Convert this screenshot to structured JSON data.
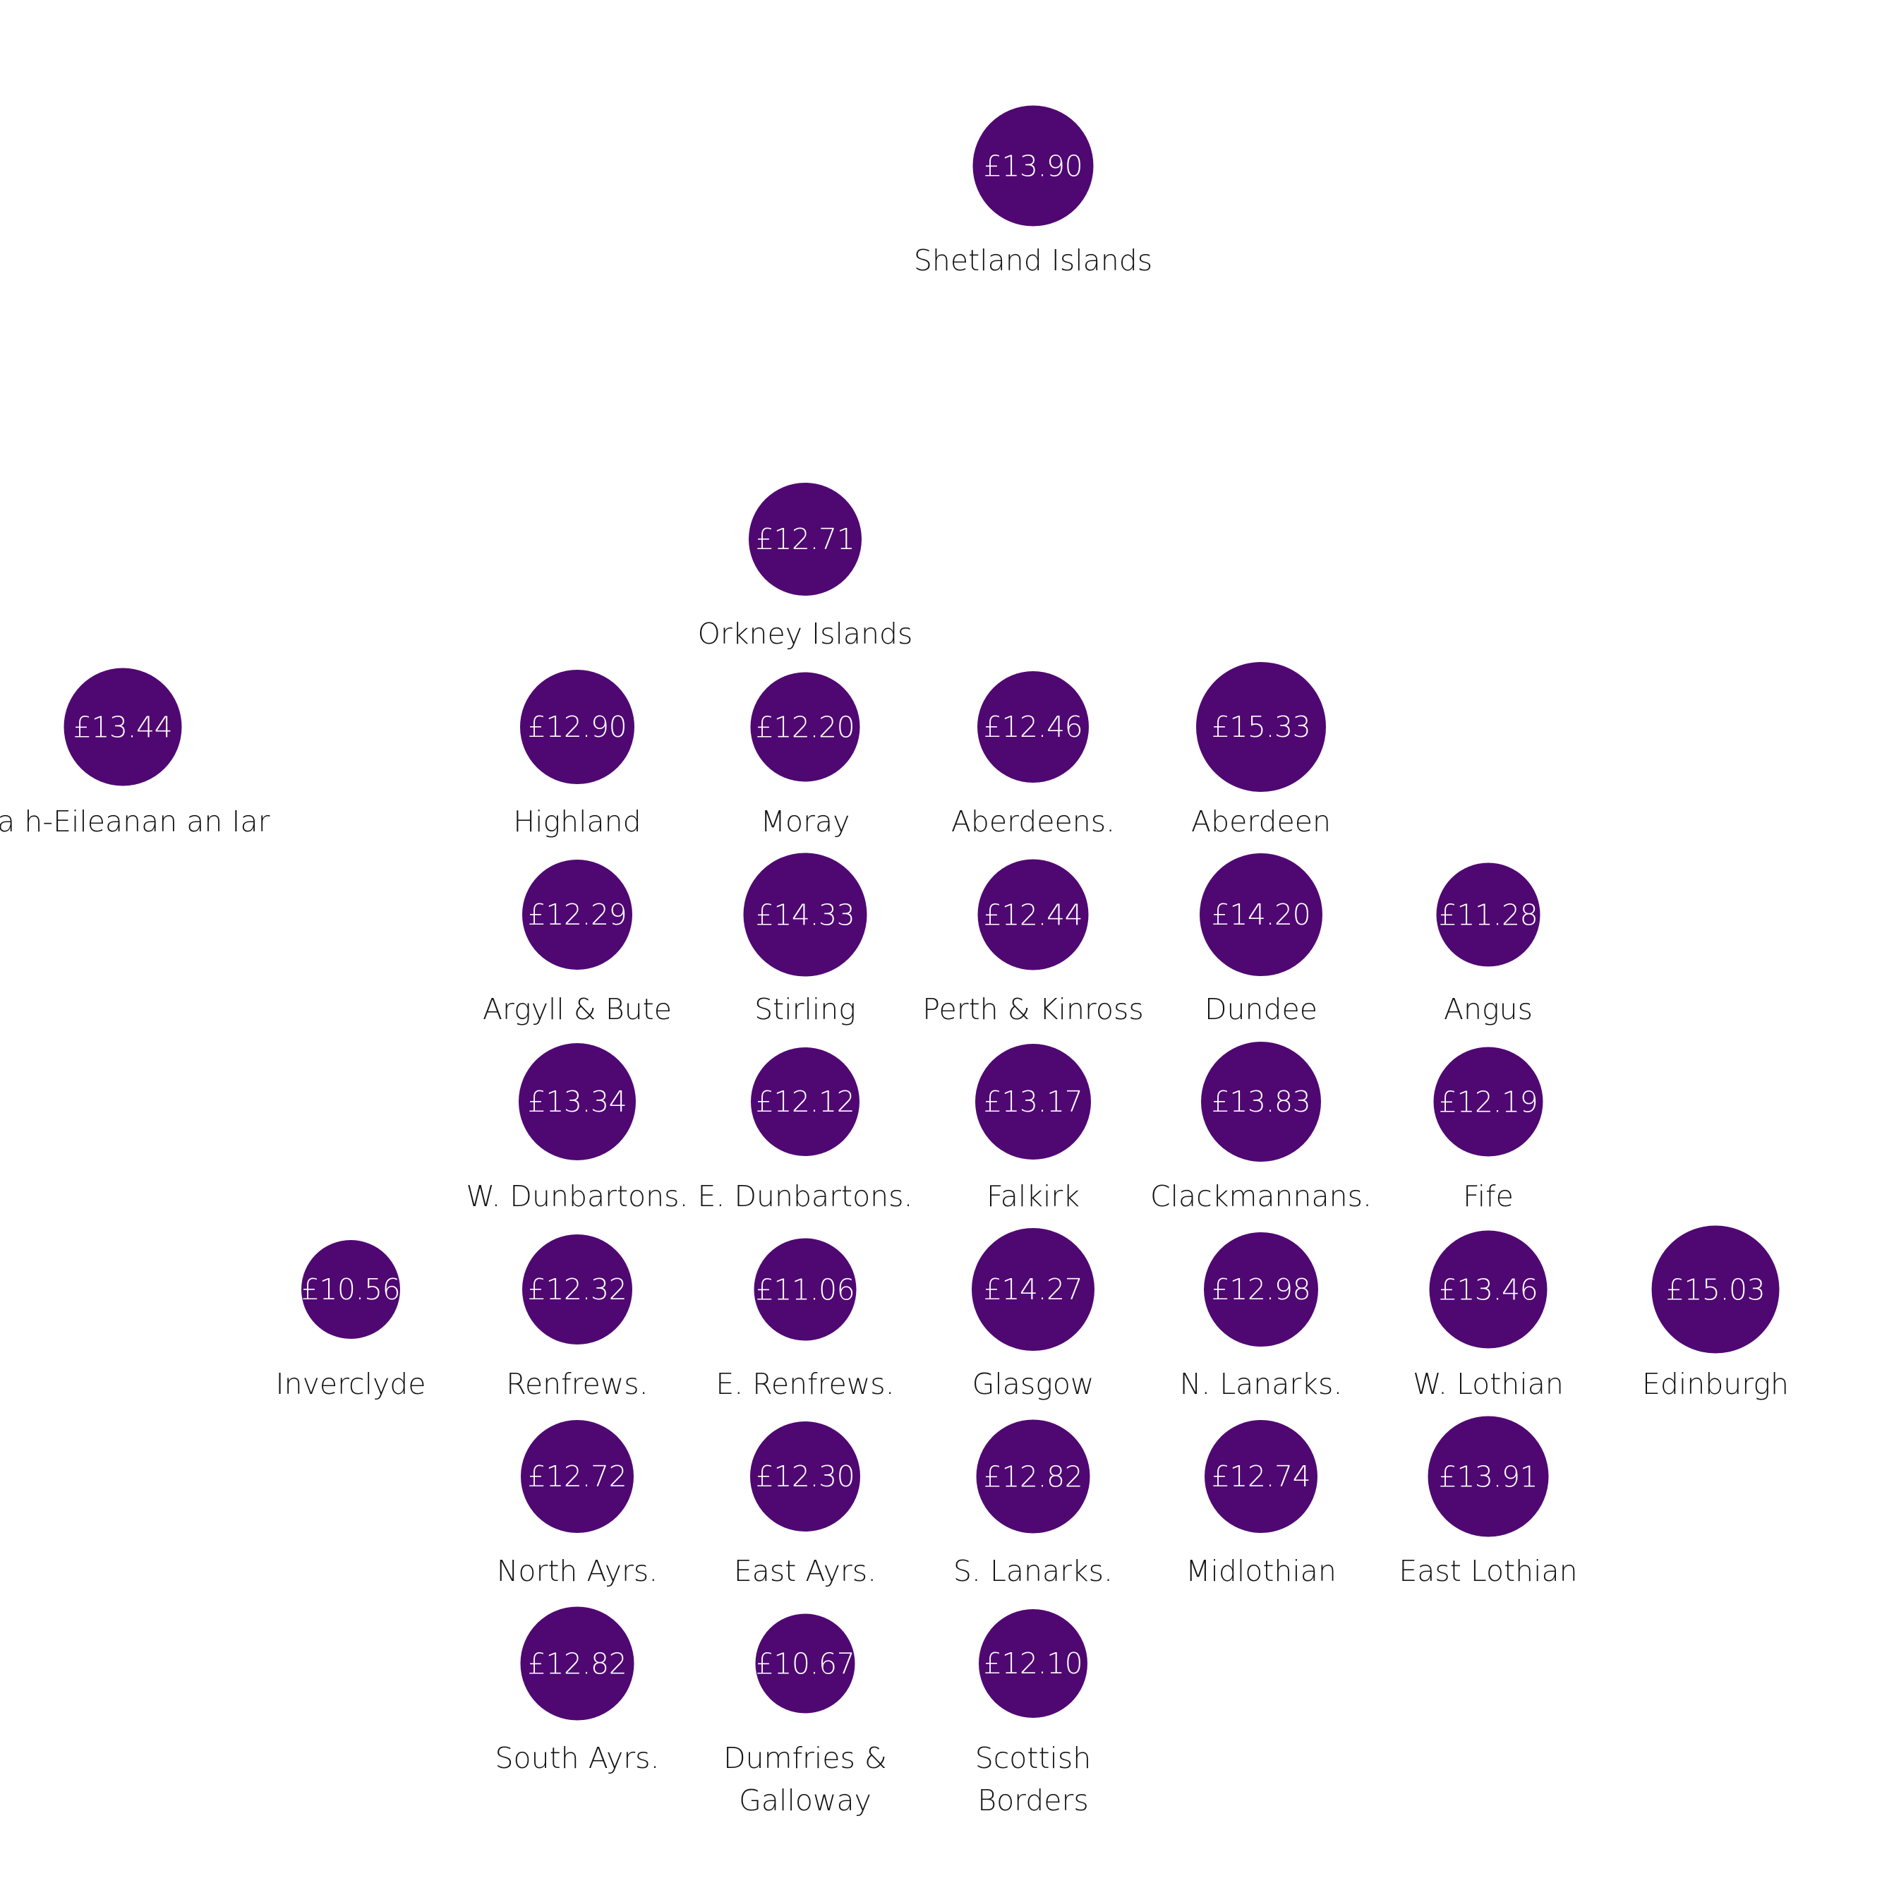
{
  "chart_data": {
    "type": "tile-map",
    "title": "",
    "unit": "£",
    "colors": {
      "bubble": "#4f0872",
      "value_text": "#ffffff",
      "label_text": "#141414"
    },
    "tiles": [
      {
        "area": "Shetland Islands",
        "value": "£13.90",
        "amount": 13.9,
        "col": 4,
        "row": 0
      },
      {
        "area": "Orkney Islands",
        "value": "£12.71",
        "amount": 12.71,
        "col": 3,
        "row": 1
      },
      {
        "area": "Na h-Eileanan an Iar",
        "value": "£13.44",
        "amount": 13.44,
        "col": 0,
        "row": 2
      },
      {
        "area": "Highland",
        "value": "£12.90",
        "amount": 12.9,
        "col": 2,
        "row": 2
      },
      {
        "area": "Moray",
        "value": "£12.20",
        "amount": 12.2,
        "col": 3,
        "row": 2
      },
      {
        "area": "Aberdeens.",
        "value": "£12.46",
        "amount": 12.46,
        "col": 4,
        "row": 2
      },
      {
        "area": "Aberdeen",
        "value": "£15.33",
        "amount": 15.33,
        "col": 5,
        "row": 2
      },
      {
        "area": "Argyll & Bute",
        "value": "£12.29",
        "amount": 12.29,
        "col": 2,
        "row": 3
      },
      {
        "area": "Stirling",
        "value": "£14.33",
        "amount": 14.33,
        "col": 3,
        "row": 3
      },
      {
        "area": "Perth & Kinross",
        "value": "£12.44",
        "amount": 12.44,
        "col": 4,
        "row": 3
      },
      {
        "area": "Dundee",
        "value": "£14.20",
        "amount": 14.2,
        "col": 5,
        "row": 3
      },
      {
        "area": "Angus",
        "value": "£11.28",
        "amount": 11.28,
        "col": 6,
        "row": 3
      },
      {
        "area": "W. Dunbartons.",
        "value": "£13.34",
        "amount": 13.34,
        "col": 2,
        "row": 4
      },
      {
        "area": "E. Dunbartons.",
        "value": "£12.12",
        "amount": 12.12,
        "col": 3,
        "row": 4
      },
      {
        "area": "Falkirk",
        "value": "£13.17",
        "amount": 13.17,
        "col": 4,
        "row": 4
      },
      {
        "area": "Clackmannans.",
        "value": "£13.83",
        "amount": 13.83,
        "col": 5,
        "row": 4
      },
      {
        "area": "Fife",
        "value": "£12.19",
        "amount": 12.19,
        "col": 6,
        "row": 4
      },
      {
        "area": "Inverclyde",
        "value": "£10.56",
        "amount": 10.56,
        "col": 1,
        "row": 5
      },
      {
        "area": "Renfrews.",
        "value": "£12.32",
        "amount": 12.32,
        "col": 2,
        "row": 5
      },
      {
        "area": "E. Renfrews.",
        "value": "£11.06",
        "amount": 11.06,
        "col": 3,
        "row": 5
      },
      {
        "area": "Glasgow",
        "value": "£14.27",
        "amount": 14.27,
        "col": 4,
        "row": 5
      },
      {
        "area": "N. Lanarks.",
        "value": "£12.98",
        "amount": 12.98,
        "col": 5,
        "row": 5
      },
      {
        "area": "W. Lothian",
        "value": "£13.46",
        "amount": 13.46,
        "col": 6,
        "row": 5
      },
      {
        "area": "Edinburgh",
        "value": "£15.03",
        "amount": 15.03,
        "col": 7,
        "row": 5
      },
      {
        "area": "North Ayrs.",
        "value": "£12.72",
        "amount": 12.72,
        "col": 2,
        "row": 6
      },
      {
        "area": "East Ayrs.",
        "value": "£12.30",
        "amount": 12.3,
        "col": 3,
        "row": 6
      },
      {
        "area": "S. Lanarks.",
        "value": "£12.82",
        "amount": 12.82,
        "col": 4,
        "row": 6
      },
      {
        "area": "Midlothian",
        "value": "£12.74",
        "amount": 12.74,
        "col": 5,
        "row": 6
      },
      {
        "area": "East Lothian",
        "value": "£13.91",
        "amount": 13.91,
        "col": 6,
        "row": 6
      },
      {
        "area": "South Ayrs.",
        "value": "£12.82",
        "amount": 12.82,
        "col": 2,
        "row": 7
      },
      {
        "area": "Dumfries &\nGalloway",
        "value": "£10.67",
        "amount": 10.67,
        "col": 3,
        "row": 7
      },
      {
        "area": "Scottish\nBorders",
        "value": "£12.10",
        "amount": 12.1,
        "col": 4,
        "row": 7
      }
    ]
  }
}
